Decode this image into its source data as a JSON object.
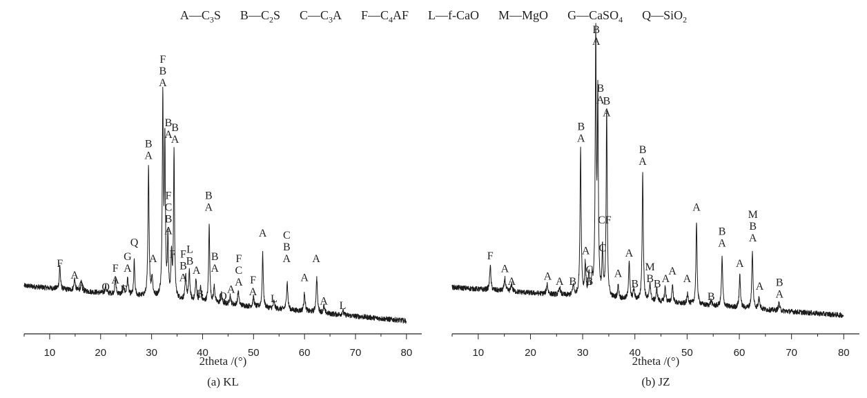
{
  "legend": [
    {
      "code": "A",
      "sep": "—",
      "formula": [
        {
          "t": "C"
        },
        {
          "s": "3"
        },
        {
          "t": "S"
        }
      ]
    },
    {
      "code": "B",
      "sep": "—",
      "formula": [
        {
          "t": "C"
        },
        {
          "s": "2"
        },
        {
          "t": "S"
        }
      ]
    },
    {
      "code": "C",
      "sep": "—",
      "formula": [
        {
          "t": "C"
        },
        {
          "s": "3"
        },
        {
          "t": "A"
        }
      ]
    },
    {
      "code": "F",
      "sep": "—",
      "formula": [
        {
          "t": "C"
        },
        {
          "s": "4"
        },
        {
          "t": "AF"
        }
      ]
    },
    {
      "code": "L",
      "sep": "—",
      "formula": [
        {
          "t": "f-CaO"
        }
      ]
    },
    {
      "code": "M",
      "sep": "—",
      "formula": [
        {
          "t": "MgO"
        }
      ]
    },
    {
      "code": "G",
      "sep": "—",
      "formula": [
        {
          "t": "CaSO"
        },
        {
          "s": "4"
        }
      ]
    },
    {
      "code": "Q",
      "sep": "—",
      "formula": [
        {
          "t": "SiO"
        },
        {
          "s": "2"
        }
      ]
    }
  ],
  "chart_data": [
    {
      "type": "line",
      "caption": "(a)  KL",
      "xlabel": "2theta /(°)",
      "ylabel": "",
      "xlim": [
        5,
        83
      ],
      "xticks": [
        10,
        20,
        30,
        40,
        50,
        60,
        70,
        80
      ],
      "yticks_shown": false,
      "baseline": {
        "start": 17,
        "end": 2
      },
      "noise": 1.1,
      "peaks": [
        {
          "x": 12.0,
          "h": 10,
          "w": 0.13
        },
        {
          "x": 14.9,
          "h": 5,
          "w": 0.15
        },
        {
          "x": 16.2,
          "h": 3.5,
          "w": 0.15
        },
        {
          "x": 21.0,
          "h": 3,
          "w": 0.15
        },
        {
          "x": 22.9,
          "h": 6,
          "w": 0.15
        },
        {
          "x": 24.5,
          "h": 3.5,
          "w": 0.15
        },
        {
          "x": 25.3,
          "h": 7,
          "w": 0.15
        },
        {
          "x": 26.6,
          "h": 15,
          "w": 0.12
        },
        {
          "x": 29.4,
          "h": 55,
          "w": 0.13
        },
        {
          "x": 30.1,
          "h": 8,
          "w": 0.15
        },
        {
          "x": 32.2,
          "h": 85,
          "w": 0.12
        },
        {
          "x": 32.6,
          "h": 65,
          "w": 0.12
        },
        {
          "x": 33.2,
          "h": 25,
          "w": 0.12
        },
        {
          "x": 33.9,
          "h": 18,
          "w": 0.12
        },
        {
          "x": 34.4,
          "h": 62,
          "w": 0.12
        },
        {
          "x": 36.7,
          "h": 10,
          "w": 0.15
        },
        {
          "x": 37.4,
          "h": 12,
          "w": 0.15
        },
        {
          "x": 38.7,
          "h": 9,
          "w": 0.15
        },
        {
          "x": 39.6,
          "h": 6,
          "w": 0.15
        },
        {
          "x": 41.3,
          "h": 33,
          "w": 0.13
        },
        {
          "x": 42.3,
          "h": 7,
          "w": 0.15
        },
        {
          "x": 43.7,
          "h": 4,
          "w": 0.15
        },
        {
          "x": 45.4,
          "h": 4,
          "w": 0.15
        },
        {
          "x": 47.0,
          "h": 6,
          "w": 0.15
        },
        {
          "x": 50.0,
          "h": 4,
          "w": 0.15
        },
        {
          "x": 51.8,
          "h": 23,
          "w": 0.13
        },
        {
          "x": 54.0,
          "h": 3,
          "w": 0.15
        },
        {
          "x": 56.6,
          "h": 12,
          "w": 0.15
        },
        {
          "x": 60.0,
          "h": 8,
          "w": 0.15
        },
        {
          "x": 62.4,
          "h": 15,
          "w": 0.15
        },
        {
          "x": 63.8,
          "h": 3,
          "w": 0.15
        },
        {
          "x": 67.5,
          "h": 2,
          "w": 0.15
        }
      ],
      "peak_labels": [
        {
          "x": 12.0,
          "ylevel": 25,
          "stack": [
            "F"
          ]
        },
        {
          "x": 14.9,
          "ylevel": 20,
          "stack": [
            "A"
          ]
        },
        {
          "x": 16.2,
          "ylevel": 16,
          "stack": [
            "A"
          ]
        },
        {
          "x": 21.0,
          "ylevel": 15,
          "stack": [
            "Q"
          ]
        },
        {
          "x": 22.9,
          "ylevel": 18,
          "stack": [
            "F",
            "A"
          ]
        },
        {
          "x": 24.5,
          "ylevel": 14,
          "stack": [
            "F"
          ]
        },
        {
          "x": 25.3,
          "ylevel": 23,
          "stack": [
            "G",
            "A"
          ]
        },
        {
          "x": 26.6,
          "ylevel": 34,
          "stack": [
            "Q"
          ]
        },
        {
          "x": 29.4,
          "ylevel": 71,
          "stack": [
            "B",
            "A"
          ]
        },
        {
          "x": 30.3,
          "ylevel": 27,
          "stack": [
            "A"
          ]
        },
        {
          "x": 32.2,
          "ylevel": 102,
          "stack": [
            "F",
            "B",
            "A"
          ]
        },
        {
          "x": 33.3,
          "ylevel": 80,
          "stack": [
            "B",
            "A"
          ]
        },
        {
          "x": 34.6,
          "ylevel": 78,
          "stack": [
            "B",
            "A"
          ]
        },
        {
          "x": 33.3,
          "ylevel": 39,
          "stack": [
            "F",
            "C",
            "B",
            "A"
          ]
        },
        {
          "x": 34.1,
          "ylevel": 29,
          "stack": [
            "F"
          ]
        },
        {
          "x": 36.2,
          "ylevel": 19,
          "stack": [
            "F",
            "B",
            "A"
          ]
        },
        {
          "x": 37.5,
          "ylevel": 26,
          "stack": [
            "L",
            "B"
          ]
        },
        {
          "x": 38.8,
          "ylevel": 22,
          "stack": [
            "A"
          ]
        },
        {
          "x": 39.5,
          "ylevel": 12,
          "stack": [
            "B"
          ]
        },
        {
          "x": 41.2,
          "ylevel": 49,
          "stack": [
            "B",
            "A"
          ]
        },
        {
          "x": 42.4,
          "ylevel": 23,
          "stack": [
            "B",
            "A"
          ]
        },
        {
          "x": 44.0,
          "ylevel": 11,
          "stack": [
            "Q"
          ]
        },
        {
          "x": 45.6,
          "ylevel": 14,
          "stack": [
            "A"
          ]
        },
        {
          "x": 47.1,
          "ylevel": 17,
          "stack": [
            "F",
            "C",
            "A"
          ]
        },
        {
          "x": 49.9,
          "ylevel": 13,
          "stack": [
            "F",
            "A"
          ]
        },
        {
          "x": 51.8,
          "ylevel": 38,
          "stack": [
            "A"
          ]
        },
        {
          "x": 54.0,
          "ylevel": 10,
          "stack": [
            "L"
          ]
        },
        {
          "x": 56.5,
          "ylevel": 27,
          "stack": [
            "C",
            "B",
            "A"
          ]
        },
        {
          "x": 60.0,
          "ylevel": 19,
          "stack": [
            "A"
          ]
        },
        {
          "x": 62.3,
          "ylevel": 27,
          "stack": [
            "A"
          ]
        },
        {
          "x": 63.8,
          "ylevel": 9,
          "stack": [
            "A"
          ]
        },
        {
          "x": 67.5,
          "ylevel": 7,
          "stack": [
            "L"
          ]
        }
      ]
    },
    {
      "type": "line",
      "caption": "(b) JZ",
      "xlabel": "2theta /(°)",
      "ylabel": "",
      "xlim": [
        5,
        83
      ],
      "xticks": [
        10,
        20,
        30,
        40,
        50,
        60,
        70,
        80
      ],
      "yticks_shown": false,
      "baseline": {
        "start": 15,
        "end": 4
      },
      "noise": 1.0,
      "peaks": [
        {
          "x": 12.3,
          "h": 10,
          "w": 0.13
        },
        {
          "x": 15.1,
          "h": 5,
          "w": 0.15
        },
        {
          "x": 16.4,
          "h": 3,
          "w": 0.15
        },
        {
          "x": 23.2,
          "h": 4,
          "w": 0.15
        },
        {
          "x": 25.6,
          "h": 3,
          "w": 0.15
        },
        {
          "x": 28.2,
          "h": 4,
          "w": 0.15
        },
        {
          "x": 29.6,
          "h": 58,
          "w": 0.13
        },
        {
          "x": 30.5,
          "h": 12,
          "w": 0.14
        },
        {
          "x": 31.2,
          "h": 8,
          "w": 0.14
        },
        {
          "x": 31.8,
          "h": 6,
          "w": 0.14
        },
        {
          "x": 32.5,
          "h": 100,
          "w": 0.12
        },
        {
          "x": 32.9,
          "h": 75,
          "w": 0.12
        },
        {
          "x": 33.8,
          "h": 18,
          "w": 0.12
        },
        {
          "x": 34.6,
          "h": 74,
          "w": 0.12
        },
        {
          "x": 36.8,
          "h": 5,
          "w": 0.15
        },
        {
          "x": 38.9,
          "h": 15,
          "w": 0.14
        },
        {
          "x": 39.8,
          "h": 4,
          "w": 0.15
        },
        {
          "x": 41.5,
          "h": 50,
          "w": 0.13
        },
        {
          "x": 42.9,
          "h": 7,
          "w": 0.15
        },
        {
          "x": 44.2,
          "h": 5,
          "w": 0.15
        },
        {
          "x": 45.8,
          "h": 6,
          "w": 0.15
        },
        {
          "x": 47.2,
          "h": 7,
          "w": 0.15
        },
        {
          "x": 50.1,
          "h": 4,
          "w": 0.15
        },
        {
          "x": 51.8,
          "h": 32,
          "w": 0.13
        },
        {
          "x": 54.6,
          "h": 2,
          "w": 0.15
        },
        {
          "x": 56.7,
          "h": 19,
          "w": 0.14
        },
        {
          "x": 60.1,
          "h": 13,
          "w": 0.14
        },
        {
          "x": 62.5,
          "h": 22,
          "w": 0.14
        },
        {
          "x": 63.8,
          "h": 5,
          "w": 0.15
        },
        {
          "x": 67.6,
          "h": 3,
          "w": 0.15
        }
      ],
      "peak_labels": [
        {
          "x": 12.3,
          "ylevel": 26,
          "stack": [
            "F"
          ]
        },
        {
          "x": 15.1,
          "ylevel": 21,
          "stack": [
            "A"
          ]
        },
        {
          "x": 16.4,
          "ylevel": 16,
          "stack": [
            "A"
          ]
        },
        {
          "x": 23.3,
          "ylevel": 18,
          "stack": [
            "A"
          ]
        },
        {
          "x": 25.6,
          "ylevel": 16,
          "stack": [
            "A"
          ]
        },
        {
          "x": 28.1,
          "ylevel": 16,
          "stack": [
            "B"
          ]
        },
        {
          "x": 29.7,
          "ylevel": 72,
          "stack": [
            "B",
            "A"
          ]
        },
        {
          "x": 30.6,
          "ylevel": 28,
          "stack": [
            "A"
          ]
        },
        {
          "x": 31.3,
          "ylevel": 16,
          "stack": [
            "C",
            "B"
          ]
        },
        {
          "x": 32.6,
          "ylevel": 110,
          "stack": [
            "B",
            "A"
          ]
        },
        {
          "x": 33.4,
          "ylevel": 87,
          "stack": [
            "B",
            "A"
          ]
        },
        {
          "x": 34.6,
          "ylevel": 82,
          "stack": [
            "B",
            "A"
          ]
        },
        {
          "x": 33.8,
          "ylevel": 29,
          "stack": [
            "C"
          ]
        },
        {
          "x": 34.2,
          "ylevel": 40,
          "stack": [
            "CF"
          ]
        },
        {
          "x": 36.8,
          "ylevel": 19,
          "stack": [
            "A"
          ]
        },
        {
          "x": 38.9,
          "ylevel": 27,
          "stack": [
            "A"
          ]
        },
        {
          "x": 40.0,
          "ylevel": 15,
          "stack": [
            "B"
          ]
        },
        {
          "x": 41.5,
          "ylevel": 63,
          "stack": [
            "B",
            "A"
          ]
        },
        {
          "x": 42.9,
          "ylevel": 17,
          "stack": [
            "M",
            "B"
          ]
        },
        {
          "x": 44.3,
          "ylevel": 15,
          "stack": [
            "B"
          ]
        },
        {
          "x": 45.9,
          "ylevel": 17,
          "stack": [
            "A"
          ]
        },
        {
          "x": 47.2,
          "ylevel": 20,
          "stack": [
            "A"
          ]
        },
        {
          "x": 50.0,
          "ylevel": 17,
          "stack": [
            "A"
          ]
        },
        {
          "x": 51.8,
          "ylevel": 45,
          "stack": [
            "A"
          ]
        },
        {
          "x": 54.6,
          "ylevel": 10,
          "stack": [
            "B"
          ]
        },
        {
          "x": 56.7,
          "ylevel": 31,
          "stack": [
            "B",
            "A"
          ]
        },
        {
          "x": 60.1,
          "ylevel": 23,
          "stack": [
            "A"
          ]
        },
        {
          "x": 62.6,
          "ylevel": 33,
          "stack": [
            "M",
            "B",
            "A"
          ]
        },
        {
          "x": 63.9,
          "ylevel": 14,
          "stack": [
            "A"
          ]
        },
        {
          "x": 67.7,
          "ylevel": 11,
          "stack": [
            "B",
            "A"
          ]
        }
      ]
    }
  ]
}
